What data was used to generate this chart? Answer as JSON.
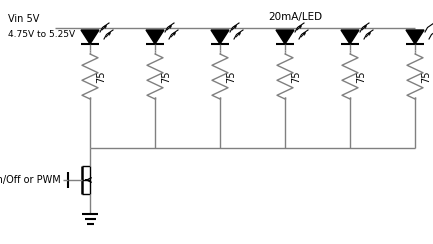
{
  "bg_color": "#ffffff",
  "line_color": "#808080",
  "text_color": "#000000",
  "vin_label": "Vin 5V",
  "vin_sub_label": "4.75V to 5.25V",
  "top_label": "20mA/LED",
  "pwm_label": "On/Off or PWM",
  "resistor_value": "75",
  "num_leds": 6,
  "fig_width": 4.33,
  "fig_height": 2.44,
  "dpi": 100
}
